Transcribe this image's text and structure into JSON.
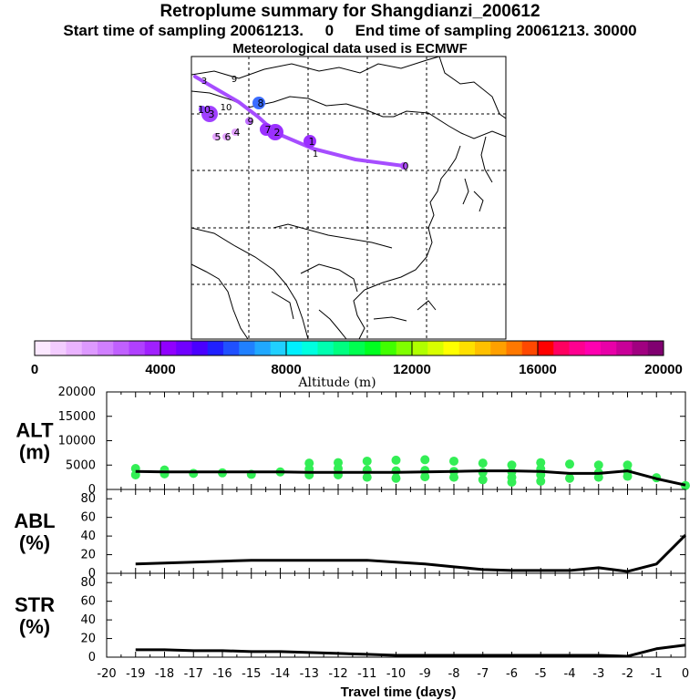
{
  "titles": {
    "line1": "Retroplume summary for Shangdianzi_200612",
    "line2": "Start time of sampling 20061213.     0     End time of sampling 20061213. 30000",
    "line3": "Meteorological data used is ECMWF"
  },
  "colors": {
    "trajectory": "#a64dff",
    "alt_points": "#33ee55",
    "line": "#000000"
  },
  "chart_data": [
    {
      "type": "map",
      "name": "retroplume-map",
      "trajectory_labels": [
        "0",
        "1",
        "2",
        "3",
        "4",
        "5",
        "6",
        "7",
        "8",
        "9",
        "10"
      ],
      "cluster_markers": [
        {
          "label": "0",
          "day": 0,
          "color": "#b04bff",
          "size": "small"
        },
        {
          "label": "1",
          "day": -1,
          "color": "#9b30ff",
          "size": "medium"
        },
        {
          "label": "2",
          "day": -2,
          "color": "#9b30ff",
          "size": "large"
        },
        {
          "label": "3",
          "day": -3,
          "color": "#a040ff",
          "size": "large"
        },
        {
          "label": "4",
          "day": -4,
          "color": "#e3a3ff",
          "size": "small"
        },
        {
          "label": "5",
          "day": -5,
          "color": "#e3a3ff",
          "size": "small"
        },
        {
          "label": "6",
          "day": -6,
          "color": "#e3a3ff",
          "size": "small"
        },
        {
          "label": "7",
          "day": -7,
          "color": "#9b30ff",
          "size": "medium"
        },
        {
          "label": "8",
          "day": -8,
          "color": "#3b6cff",
          "size": "medium"
        },
        {
          "label": "9",
          "day": -9,
          "color": "#c070ff",
          "size": "small"
        },
        {
          "label": "10",
          "day": -10,
          "color": "#8a40ff",
          "size": "small"
        }
      ]
    },
    {
      "type": "colorbar",
      "name": "altitude-colorbar",
      "label": "Altitude (m)",
      "tick_labels": [
        "0",
        "4000",
        "8000",
        "12000",
        "16000",
        "20000"
      ],
      "range": [
        0,
        20000
      ],
      "colors": [
        "#fbe8ff",
        "#f3ccff",
        "#eab3ff",
        "#dd99ff",
        "#d07fff",
        "#c060ff",
        "#b040ff",
        "#a020ff",
        "#9000ff",
        "#7000ff",
        "#4a00ff",
        "#2020ff",
        "#2050ff",
        "#2080ff",
        "#20a8ff",
        "#20d0ff",
        "#00f0ff",
        "#00ffe0",
        "#00ffb0",
        "#00ff80",
        "#00ff50",
        "#00ff20",
        "#40ff00",
        "#80ff00",
        "#b0ff00",
        "#d8ff00",
        "#ffff00",
        "#ffe000",
        "#ffc000",
        "#ffa000",
        "#ff7800",
        "#ff4800",
        "#ff0000",
        "#ff0060",
        "#ff0090",
        "#ff00b0",
        "#e800a8",
        "#c80098",
        "#a00080",
        "#800070"
      ]
    },
    {
      "type": "line",
      "name": "alt-panel",
      "ylabel": "ALT\n(m)",
      "ylabel_lines": [
        "ALT",
        "(m)"
      ],
      "ylim": [
        0,
        20000
      ],
      "yticks": [
        "20000",
        "15000",
        "10000",
        "5000",
        "0"
      ],
      "ytick_values": [
        20000,
        15000,
        10000,
        5000,
        0
      ],
      "x": [
        0,
        -1,
        -2,
        -3,
        -4,
        -5,
        -6,
        -7,
        -8,
        -9,
        -10,
        -11,
        -12,
        -13,
        -14,
        -15,
        -16,
        -17,
        -18,
        -19
      ],
      "series": [
        {
          "name": "mean altitude",
          "values": [
            900,
            2200,
            3800,
            3300,
            3300,
            3700,
            3800,
            3800,
            3700,
            3600,
            3500,
            3500,
            3500,
            3500,
            3600,
            3600,
            3600,
            3600,
            3600,
            3700
          ]
        }
      ],
      "points": [
        {
          "x": -19,
          "y": 3000
        },
        {
          "x": -19,
          "y": 4300
        },
        {
          "x": -18,
          "y": 3200
        },
        {
          "x": -18,
          "y": 4000
        },
        {
          "x": -17,
          "y": 3300
        },
        {
          "x": -16,
          "y": 3400
        },
        {
          "x": -15,
          "y": 3100
        },
        {
          "x": -14,
          "y": 3600
        },
        {
          "x": -13,
          "y": 3000
        },
        {
          "x": -13,
          "y": 4200
        },
        {
          "x": -13,
          "y": 5400
        },
        {
          "x": -12,
          "y": 3000
        },
        {
          "x": -12,
          "y": 4300
        },
        {
          "x": -12,
          "y": 5500
        },
        {
          "x": -11,
          "y": 2500
        },
        {
          "x": -11,
          "y": 4000
        },
        {
          "x": -11,
          "y": 5800
        },
        {
          "x": -10,
          "y": 2300
        },
        {
          "x": -10,
          "y": 3800
        },
        {
          "x": -10,
          "y": 6000
        },
        {
          "x": -9,
          "y": 2600
        },
        {
          "x": -9,
          "y": 3900
        },
        {
          "x": -9,
          "y": 6100
        },
        {
          "x": -8,
          "y": 2500
        },
        {
          "x": -8,
          "y": 3700
        },
        {
          "x": -8,
          "y": 5800
        },
        {
          "x": -7,
          "y": 2000
        },
        {
          "x": -7,
          "y": 3500
        },
        {
          "x": -7,
          "y": 5400
        },
        {
          "x": -6,
          "y": 1500
        },
        {
          "x": -6,
          "y": 2500
        },
        {
          "x": -6,
          "y": 3600
        },
        {
          "x": -6,
          "y": 5000
        },
        {
          "x": -5,
          "y": 1700
        },
        {
          "x": -5,
          "y": 3000
        },
        {
          "x": -5,
          "y": 4200
        },
        {
          "x": -5,
          "y": 5500
        },
        {
          "x": -4,
          "y": 2300
        },
        {
          "x": -4,
          "y": 5200
        },
        {
          "x": -3,
          "y": 2500
        },
        {
          "x": -3,
          "y": 3400
        },
        {
          "x": -3,
          "y": 5000
        },
        {
          "x": -2,
          "y": 2700
        },
        {
          "x": -2,
          "y": 3700
        },
        {
          "x": -2,
          "y": 5000
        },
        {
          "x": -1,
          "y": 2400
        },
        {
          "x": 0,
          "y": 800
        }
      ]
    },
    {
      "type": "line",
      "name": "abl-panel",
      "ylabel_lines": [
        "ABL",
        "(%)"
      ],
      "ylim": [
        0,
        90
      ],
      "yticks": [
        "80",
        "60",
        "40",
        "20",
        "0"
      ],
      "ytick_values": [
        80,
        60,
        40,
        20,
        0
      ],
      "x": [
        0,
        -1,
        -2,
        -3,
        -4,
        -5,
        -6,
        -7,
        -8,
        -9,
        -10,
        -11,
        -12,
        -13,
        -14,
        -15,
        -16,
        -17,
        -18,
        -19
      ],
      "series": [
        {
          "name": "ABL fraction",
          "values": [
            41,
            10,
            2,
            6,
            3,
            3,
            3,
            4,
            7,
            10,
            12,
            14,
            14,
            14,
            14,
            14,
            13,
            12,
            11,
            10
          ]
        }
      ]
    },
    {
      "type": "line",
      "name": "str-panel",
      "ylabel_lines": [
        "STR",
        "(%)"
      ],
      "ylim": [
        0,
        90
      ],
      "yticks": [
        "80",
        "60",
        "40",
        "20",
        "0"
      ],
      "ytick_values": [
        80,
        60,
        40,
        20,
        0
      ],
      "x": [
        0,
        -1,
        -2,
        -3,
        -4,
        -5,
        -6,
        -7,
        -8,
        -9,
        -10,
        -11,
        -12,
        -13,
        -14,
        -15,
        -16,
        -17,
        -18,
        -19
      ],
      "xlabel": "Travel time (days)",
      "xticks": [
        "-20",
        "-19",
        "-18",
        "-17",
        "-16",
        "-15",
        "-14",
        "-13",
        "-12",
        "-11",
        "-10",
        "-9",
        "-8",
        "-7",
        "-6",
        "-5",
        "-4",
        "-3",
        "-2",
        "-1",
        "0"
      ],
      "xtick_values": [
        -20,
        -19,
        -18,
        -17,
        -16,
        -15,
        -14,
        -13,
        -12,
        -11,
        -10,
        -9,
        -8,
        -7,
        -6,
        -5,
        -4,
        -3,
        -2,
        -1,
        0
      ],
      "series": [
        {
          "name": "stratospheric fraction",
          "values": [
            13,
            9,
            1,
            2,
            2,
            2,
            2,
            2,
            2,
            2,
            2,
            3,
            4,
            5,
            6,
            6,
            7,
            7,
            8,
            8
          ]
        }
      ]
    }
  ]
}
